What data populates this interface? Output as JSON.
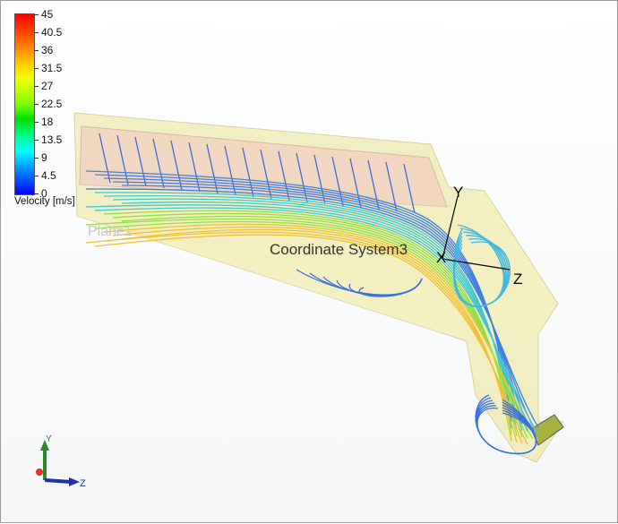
{
  "legend": {
    "title": "Velocity [m/s]",
    "ticks": [
      "45",
      "40.5",
      "36",
      "31.5",
      "27",
      "22.5",
      "18",
      "13.5",
      "9",
      "4.5",
      "0"
    ],
    "min": 0,
    "max": 45,
    "colormap": [
      "#0000ff",
      "#0090ff",
      "#00ffff",
      "#00e000",
      "#7dff00",
      "#f0ff00",
      "#ffd000",
      "#ff6a00",
      "#ff0000"
    ]
  },
  "scene": {
    "plane_label": "Plane1",
    "coord_system_label": "Coordinate System3",
    "axis_y": "Y",
    "axis_z": "Z",
    "axis_x": "X"
  },
  "triad": {
    "y": "Y",
    "z": "Z"
  }
}
